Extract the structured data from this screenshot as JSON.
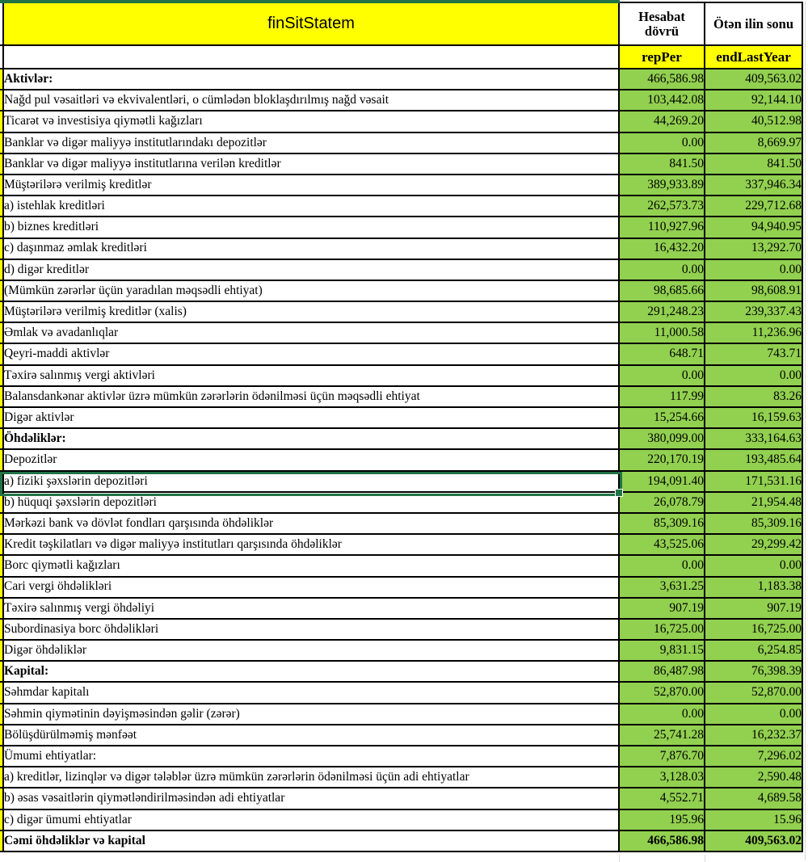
{
  "colors": {
    "header_yellow": "#FFFF00",
    "value_green": "#92D050",
    "selection_green": "#217346",
    "border_black": "#000000"
  },
  "header": {
    "title": "finSitStatem",
    "period_col": "Hesabat dövrü",
    "last_year_col": "Ötən ilin sonu",
    "period_code": "repPer",
    "last_year_code": "endLastYear"
  },
  "table": {
    "rows": [
      {
        "label": "Aktivlər:",
        "repPer": "466,586.98",
        "endLastYear": "409,563.02",
        "bold_label": true
      },
      {
        "label": "Nağd pul vəsaitləri və ekvivalentləri, o cümlədən bloklaşdırılmış nağd vəsait",
        "repPer": "103,442.08",
        "endLastYear": "92,144.10"
      },
      {
        "label": "Ticarət və investisiya qiymətli kağızları",
        "repPer": "44,269.20",
        "endLastYear": "40,512.98"
      },
      {
        "label": "Banklar və digər maliyyə institutlarındakı depozitlər",
        "repPer": "0.00",
        "endLastYear": "8,669.97"
      },
      {
        "label": "Banklar və digər maliyyə institutlarına verilən kreditlər",
        "repPer": "841.50",
        "endLastYear": "841.50"
      },
      {
        "label": "Müştərilərə verilmiş kreditlər",
        "repPer": "389,933.89",
        "endLastYear": "337,946.34"
      },
      {
        "label": "a) istehlak kreditləri",
        "repPer": "262,573.73",
        "endLastYear": "229,712.68"
      },
      {
        "label": "b) biznes kreditləri",
        "repPer": "110,927.96",
        "endLastYear": "94,940.95"
      },
      {
        "label": "c) daşınmaz əmlak kreditləri",
        "repPer": "16,432.20",
        "endLastYear": "13,292.70"
      },
      {
        "label": "d) digər kreditlər",
        "repPer": "0.00",
        "endLastYear": "0.00"
      },
      {
        "label": "(Mümkün zərərlər üçün yaradılan məqsədli ehtiyat)",
        "repPer": "98,685.66",
        "endLastYear": "98,608.91"
      },
      {
        "label": "Müştərilərə verilmiş kreditlər (xalis)",
        "repPer": "291,248.23",
        "endLastYear": "239,337.43"
      },
      {
        "label": "Əmlak və avadanlıqlar",
        "repPer": "11,000.58",
        "endLastYear": "11,236.96"
      },
      {
        "label": "Qeyri-maddi aktivlər",
        "repPer": "648.71",
        "endLastYear": "743.71"
      },
      {
        "label": "Təxirə salınmış vergi aktivləri",
        "repPer": "0.00",
        "endLastYear": "0.00"
      },
      {
        "label": "Balansdankənar aktivlər üzrə mümkün zərərlərin ödənilməsi üçün məqsədli ehtiyat",
        "repPer": "117.99",
        "endLastYear": "83.26"
      },
      {
        "label": "Digər aktivlər",
        "repPer": "15,254.66",
        "endLastYear": "16,159.63"
      },
      {
        "label": "Öhdəliklər:",
        "repPer": "380,099.00",
        "endLastYear": "333,164.63",
        "bold_label": true
      },
      {
        "label": "Depozitlər",
        "repPer": "220,170.19",
        "endLastYear": "193,485.64"
      },
      {
        "label": "a) fiziki şəxslərin depozitləri",
        "repPer": "194,091.40",
        "endLastYear": "171,531.16",
        "selected": true
      },
      {
        "label": "b) hüquqi şəxslərin depozitləri",
        "repPer": "26,078.79",
        "endLastYear": "21,954.48"
      },
      {
        "label": "Mərkəzi bank və dövlət fondları qarşısında öhdəliklər",
        "repPer": "85,309.16",
        "endLastYear": "85,309.16"
      },
      {
        "label": "Kredit təşkilatları və digər maliyyə institutları qarşısında öhdəliklər",
        "repPer": "43,525.06",
        "endLastYear": "29,299.42"
      },
      {
        "label": "Borc qiymətli kağızları",
        "repPer": "0.00",
        "endLastYear": "0.00"
      },
      {
        "label": "Cari vergi öhdəlikləri",
        "repPer": "3,631.25",
        "endLastYear": "1,183.38"
      },
      {
        "label": "Təxirə salınmış vergi öhdəliyi",
        "repPer": "907.19",
        "endLastYear": "907.19"
      },
      {
        "label": "Subordinasiya borc öhdəlikləri",
        "repPer": "16,725.00",
        "endLastYear": "16,725.00"
      },
      {
        "label": "Digər öhdəliklər",
        "repPer": "9,831.15",
        "endLastYear": "6,254.85"
      },
      {
        "label": "Kapital:",
        "repPer": "86,487.98",
        "endLastYear": "76,398.39",
        "bold_label": true
      },
      {
        "label": "Səhmdar kapitalı",
        "repPer": "52,870.00",
        "endLastYear": "52,870.00"
      },
      {
        "label": "Səhmin qiymətinin dəyişməsindən gəlir (zərər)",
        "repPer": "0.00",
        "endLastYear": "0.00"
      },
      {
        "label": "Bölüşdürülməmiş mənfəət",
        "repPer": "25,741.28",
        "endLastYear": "16,232.37"
      },
      {
        "label": "Ümumi ehtiyatlar:",
        "repPer": "7,876.70",
        "endLastYear": "7,296.02"
      },
      {
        "label": "a) kreditlər, lizinqlər və digər tələblər üzrə mümkün zərərlərin ödənilməsi üçün adi ehtiyatlar",
        "repPer": "3,128.03",
        "endLastYear": "2,590.48"
      },
      {
        "label": "b) əsas vəsaitlərin qiymətləndirilməsindən adi ehtiyatlar",
        "repPer": "4,552.71",
        "endLastYear": "4,689.58"
      },
      {
        "label": "c) digər ümumi ehtiyatlar",
        "repPer": "195.96",
        "endLastYear": "15.96"
      },
      {
        "label": "Cəmi öhdəliklər və kapital",
        "repPer": "466,586.98",
        "endLastYear": "409,563.02",
        "bold_label": true,
        "bold_values": true,
        "total": true
      }
    ]
  }
}
